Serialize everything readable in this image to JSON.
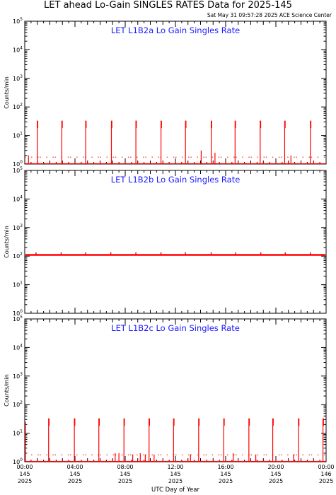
{
  "title": "LET ahead Lo-Gain SINGLES RATES Data for 2025-145",
  "timestamp": "Sat May 31 09:57:28 2025 ACE Science Center",
  "x_axis": {
    "label": "UTC Day of Year",
    "tick_labels": [
      [
        "00:00",
        "145",
        "2025"
      ],
      [
        "04:00",
        "145",
        "2025"
      ],
      [
        "08:00",
        "145",
        "2025"
      ],
      [
        "12:00",
        "145",
        "2025"
      ],
      [
        "16:00",
        "145",
        "2025"
      ],
      [
        "20:00",
        "145",
        "2025"
      ],
      [
        "00:00",
        "146",
        "2025"
      ]
    ]
  },
  "colors": {
    "data": "#ff0000",
    "panel_title": "#1a1aff",
    "axes": "#000000"
  },
  "chart_data": [
    {
      "type": "line",
      "title": "LET L1B2a Lo Gain Singles Rate",
      "ylabel": "Counts/min",
      "yscale": "log",
      "ylim": [
        1,
        100000
      ],
      "xlim_hours": [
        0,
        24
      ],
      "baseline": 1,
      "spikes": [
        {
          "x": 1.0,
          "y": 33
        },
        {
          "x": 2.95,
          "y": 33
        },
        {
          "x": 4.85,
          "y": 33
        },
        {
          "x": 6.9,
          "y": 33
        },
        {
          "x": 8.85,
          "y": 33
        },
        {
          "x": 10.85,
          "y": 33
        },
        {
          "x": 12.8,
          "y": 33
        },
        {
          "x": 14.85,
          "y": 33
        },
        {
          "x": 16.75,
          "y": 33
        },
        {
          "x": 18.75,
          "y": 33
        },
        {
          "x": 20.7,
          "y": 33
        },
        {
          "x": 22.75,
          "y": 33
        }
      ],
      "short_spikes": [
        {
          "x": 0.3,
          "y": 2
        },
        {
          "x": 14.05,
          "y": 3
        },
        {
          "x": 15.15,
          "y": 2.5
        },
        {
          "x": 21.2,
          "y": 2
        }
      ]
    },
    {
      "type": "line",
      "title": "LET L1B2b Lo Gain Singles Rate",
      "ylabel": "Counts/min",
      "yscale": "log",
      "ylim": [
        1,
        100000
      ],
      "xlim_hours": [
        0,
        24
      ],
      "baseline": 110,
      "spikes": [
        {
          "x": 0.9,
          "y": 135
        },
        {
          "x": 2.9,
          "y": 135
        },
        {
          "x": 4.85,
          "y": 135
        },
        {
          "x": 6.85,
          "y": 135
        },
        {
          "x": 8.85,
          "y": 135
        },
        {
          "x": 10.85,
          "y": 135
        },
        {
          "x": 12.8,
          "y": 135
        },
        {
          "x": 14.85,
          "y": 135
        },
        {
          "x": 16.8,
          "y": 135
        },
        {
          "x": 18.8,
          "y": 135
        },
        {
          "x": 20.75,
          "y": 135
        },
        {
          "x": 22.75,
          "y": 135
        }
      ],
      "short_spikes": []
    },
    {
      "type": "line",
      "title": "LET L1B2c Lo Gain Singles Rate",
      "ylabel": "Counts/min",
      "yscale": "log",
      "ylim": [
        1,
        100000
      ],
      "xlim_hours": [
        0,
        24
      ],
      "baseline": 1,
      "spikes": [
        {
          "x": 1.9,
          "y": 33
        },
        {
          "x": 3.95,
          "y": 33
        },
        {
          "x": 5.9,
          "y": 33
        },
        {
          "x": 7.9,
          "y": 33
        },
        {
          "x": 9.9,
          "y": 33
        },
        {
          "x": 11.85,
          "y": 33
        },
        {
          "x": 13.85,
          "y": 33
        },
        {
          "x": 15.85,
          "y": 33
        },
        {
          "x": 17.85,
          "y": 33
        },
        {
          "x": 19.75,
          "y": 33
        },
        {
          "x": 21.8,
          "y": 33
        },
        {
          "x": 23.75,
          "y": 33
        }
      ],
      "short_spikes": [
        {
          "x": 0.05,
          "y": 25
        },
        {
          "x": 7.2,
          "y": 2
        },
        {
          "x": 7.5,
          "y": 2
        },
        {
          "x": 8.6,
          "y": 1.8
        },
        {
          "x": 9.2,
          "y": 2
        },
        {
          "x": 9.6,
          "y": 1.8
        },
        {
          "x": 10.3,
          "y": 1.8
        },
        {
          "x": 13.2,
          "y": 1.8
        },
        {
          "x": 16.6,
          "y": 2
        },
        {
          "x": 18.4,
          "y": 1.8
        },
        {
          "x": 21.4,
          "y": 1.8
        }
      ]
    }
  ]
}
